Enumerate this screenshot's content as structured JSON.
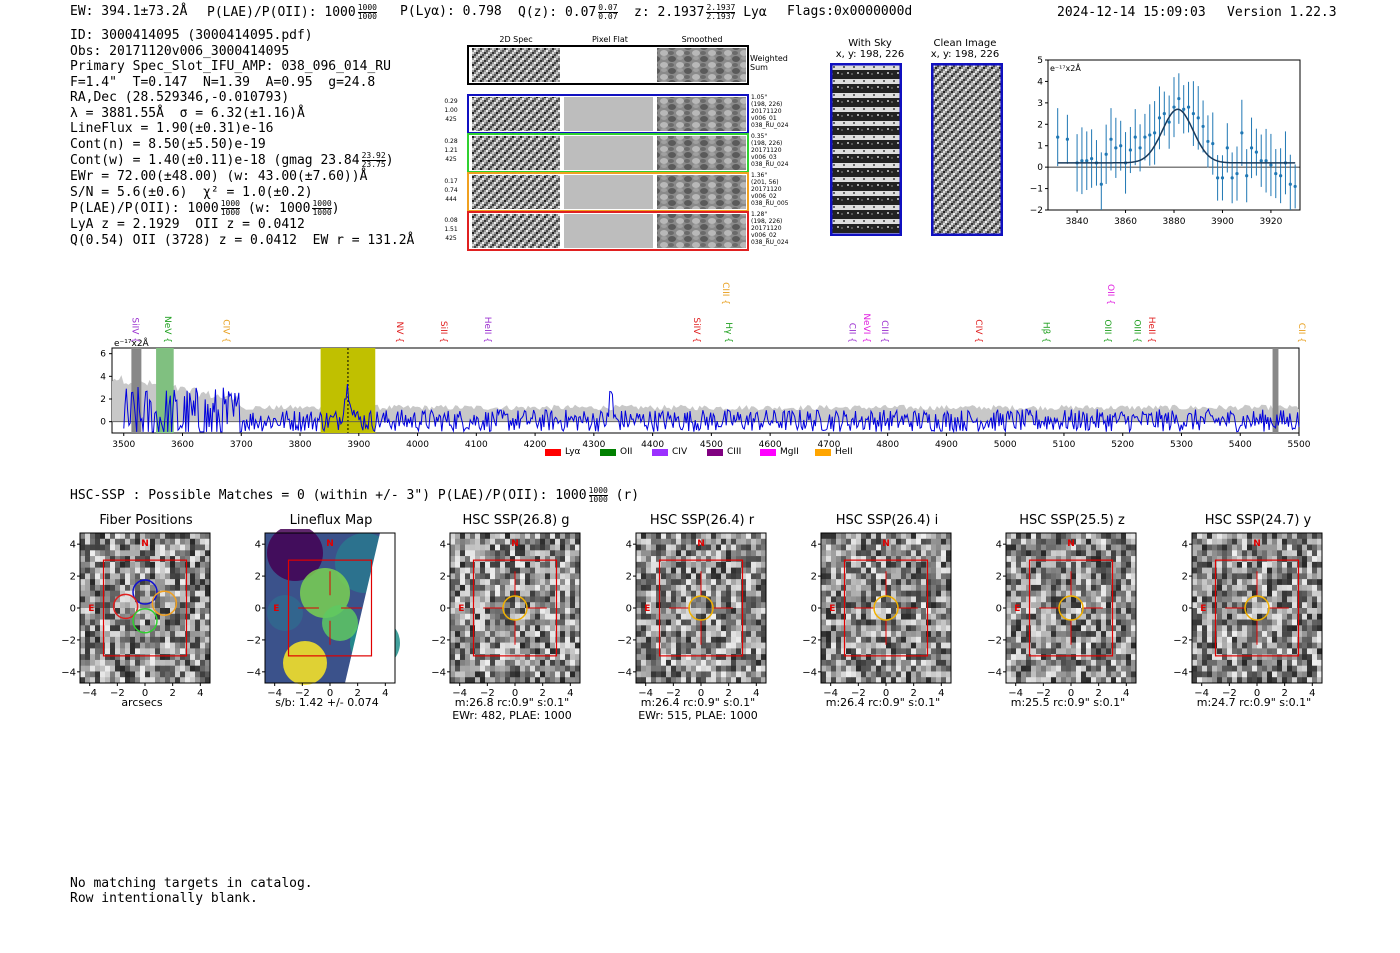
{
  "header": {
    "ew": "EW: 394.1±73.2Å",
    "plae_label": "P(LAE)/P(OII): 1000",
    "plae_hi": "1000",
    "plae_lo": "1000",
    "plya": "P(Lyα): 0.798",
    "qz_label": "Q(z): 0.07",
    "qz_hi": "0.07",
    "qz_lo": "0.07",
    "z_label": "z: 2.1937",
    "z_hi": "2.1937",
    "z_lo": "2.1937",
    "line": "Lyα",
    "flags": "Flags:0x0000000d",
    "timestamp": "2024-12-14 15:09:03",
    "version": "Version 1.22.3"
  },
  "info": {
    "l1": "ID: 3000414095 (3000414095.pdf)",
    "l2": "Obs: 20171120v006_3000414095",
    "l3": "Primary Spec_Slot_IFU_AMP: 038_096_014_RU",
    "l4": "F=1.4\"  T=0.147  N=1.39  A=0.95  g=24.8",
    "l5": "RA,Dec (28.529346,-0.010793)",
    "l6": "λ = 3881.55Å  σ = 6.32(±1.16)Å",
    "l7": "LineFlux = 1.90(±0.31)e-16",
    "l8": "Cont(n) = 8.50(±5.50)e-19",
    "l9": "Cont(w) = 1.40(±0.11)e-18 (gmag 23.84",
    "l9_hi": "23.92",
    "l9_lo": "23.75",
    "l9_end": ")",
    "l10": "EWr = 72.00(±48.00) (w: 43.00(±7.60))Å",
    "l11": "S/N = 5.6(±0.6)  χ² = 1.0(±0.2)",
    "l12": "P(LAE)/P(OII): 1000",
    "l12_hi": "1000",
    "l12_lo": "1000",
    "l12_mid": "(w: 1000",
    "l12_hi2": "1000",
    "l12_lo2": "1000",
    "l12_end": ")",
    "l13": "LyA z = 2.1929  OII z = 0.0412",
    "l14": "Q(0.54) OII (3728) z = 0.0412  EW r = 131.2Å"
  },
  "fiber_panel": {
    "col_titles": [
      "2D Spec",
      "Pixel Flat",
      "Smoothed"
    ],
    "weighted_sum": "Weighted\nSum",
    "rows": [
      {
        "left": [
          "0.29",
          "1.00",
          "425"
        ],
        "right": "1.05\"\n(198, 226)\n20171120\nv006_01\n038_RU_024",
        "color": "#1010c0"
      },
      {
        "left": [
          "0.28",
          "1.21",
          "425"
        ],
        "right": "0.35\"\n(198, 226)\n20171120\nv006_03\n038_RU_024",
        "color": "#30d030"
      },
      {
        "left": [
          "0.17",
          "0.74",
          "444"
        ],
        "right": "1.36\"\n(201, 56)\n20171120\nv006_02\n038_RU_005",
        "color": "#f0a020"
      },
      {
        "left": [
          "0.08",
          "1.51",
          "425"
        ],
        "right": "1.28\"\n(198, 226)\n20171120\nv006_02\n038_RU_024",
        "color": "#e02020"
      }
    ]
  },
  "sky_panel": {
    "title": "With Sky",
    "coords": "x, y: 198, 226"
  },
  "clean_panel": {
    "title": "Clean Image",
    "coords": "x, y: 198, 226"
  },
  "line_fit": {
    "unit_label": "e⁻¹⁷x2Å"
  },
  "spectrum": {
    "unit_label": "e⁻¹⁷x2Å",
    "lines": [
      {
        "name": "SiIV",
        "w": 3510,
        "color": "#9b30d0"
      },
      {
        "name": "NeV",
        "w": 3565,
        "color": "#20a020"
      },
      {
        "name": "CIV",
        "w": 3665,
        "color": "#e8a020"
      },
      {
        "name": "NV",
        "w": 3960,
        "color": "#e02020"
      },
      {
        "name": "SiII",
        "w": 4035,
        "color": "#e02020"
      },
      {
        "name": "HeII",
        "w": 4110,
        "color": "#9b30d0"
      },
      {
        "name": "SiIV",
        "w": 4465,
        "color": "#e02020"
      },
      {
        "name": "CIII",
        "w": 4515,
        "color": "#e8a020"
      },
      {
        "name": "Hγ",
        "w": 4520,
        "color": "#20a020"
      },
      {
        "name": "CII",
        "w": 4730,
        "color": "#9b30d0"
      },
      {
        "name": "NeVI",
        "w": 4755,
        "color": "#e020e0"
      },
      {
        "name": "CIII",
        "w": 4785,
        "color": "#9b30d0"
      },
      {
        "name": "CIV",
        "w": 4945,
        "color": "#e02020"
      },
      {
        "name": "Hβ",
        "w": 5060,
        "color": "#20a020"
      },
      {
        "name": "OII",
        "w": 5170,
        "color": "#e020e0"
      },
      {
        "name": "OIII",
        "w": 5165,
        "color": "#20a020"
      },
      {
        "name": "OIII",
        "w": 5215,
        "color": "#20a020"
      },
      {
        "name": "HeII",
        "w": 5240,
        "color": "#e02020"
      },
      {
        "name": "CII",
        "w": 5495,
        "color": "#e8a020"
      }
    ],
    "legend": [
      {
        "name": "Lyα",
        "color": "#ff0000"
      },
      {
        "name": "OII",
        "color": "#008000"
      },
      {
        "name": "CIV",
        "color": "#9b30ff"
      },
      {
        "name": "CIII",
        "color": "#800080"
      },
      {
        "name": "MgII",
        "color": "#ff00ff"
      },
      {
        "name": "HeII",
        "color": "#ffa500"
      }
    ]
  },
  "hsc": {
    "summary": "HSC-SSP : Possible Matches = 0 (within +/- 3\")  P(LAE)/P(OII): 1000",
    "summary_hi": "1000",
    "summary_lo": "1000",
    "summary_end": "(r)"
  },
  "cutouts": [
    {
      "title": "Fiber Positions",
      "cap1": "arcsecs",
      "cap2": ""
    },
    {
      "title": "Lineflux Map",
      "cap1": "s/b: 1.42 +/- 0.074",
      "cap2": ""
    },
    {
      "title": "HSC SSP(26.8) g",
      "cap1": "m:26.8 rc:0.9\"  s:0.1\"",
      "cap2": "EWr: 482, PLAE: 1000"
    },
    {
      "title": "HSC SSP(26.4) r",
      "cap1": "m:26.4 rc:0.9\"  s:0.1\"",
      "cap2": "EWr: 515, PLAE: 1000"
    },
    {
      "title": "HSC SSP(26.4) i",
      "cap1": "m:26.4 rc:0.9\"  s:0.1\"",
      "cap2": ""
    },
    {
      "title": "HSC SSP(25.5) z",
      "cap1": "m:25.5 rc:0.9\"  s:0.1\"",
      "cap2": ""
    },
    {
      "title": "HSC SSP(24.7) y",
      "cap1": "m:24.7 rc:0.9\"  s:0.1\"",
      "cap2": ""
    }
  ],
  "compass": {
    "north": "N",
    "east": "E"
  },
  "footer": {
    "l1": "No matching targets in catalog.",
    "l2": "Row intentionally blank."
  },
  "chart_data": [
    {
      "type": "scatter",
      "title": "",
      "xlabel": "",
      "ylabel": "",
      "xlim": [
        3828,
        3932
      ],
      "ylim": [
        -2,
        5
      ],
      "xticks": [
        3840,
        3860,
        3880,
        3900,
        3920
      ],
      "yticks": [
        -2,
        -1,
        0,
        1,
        2,
        3,
        4,
        5
      ],
      "x": [
        3832,
        3836,
        3840,
        3842,
        3844,
        3846,
        3848,
        3850,
        3852,
        3854,
        3856,
        3858,
        3860,
        3862,
        3864,
        3866,
        3868,
        3870,
        3872,
        3874,
        3876,
        3878,
        3880,
        3882,
        3884,
        3886,
        3888,
        3890,
        3892,
        3894,
        3896,
        3898,
        3900,
        3902,
        3904,
        3906,
        3908,
        3910,
        3912,
        3914,
        3916,
        3918,
        3920,
        3922,
        3924,
        3926,
        3928,
        3930
      ],
      "y": [
        1.4,
        1.3,
        0.2,
        0.3,
        0.3,
        0.4,
        0.2,
        -0.8,
        0.6,
        1.3,
        0.9,
        1.0,
        0.2,
        0.8,
        1.4,
        0.9,
        1.4,
        1.5,
        1.6,
        2.3,
        2.5,
        2.1,
        2.8,
        3.2,
        2.7,
        2.8,
        2.5,
        2.3,
        1.9,
        1.2,
        1.1,
        -0.5,
        -0.5,
        0.9,
        -0.5,
        -0.3,
        1.6,
        -0.4,
        0.9,
        0.7,
        0.3,
        0.3,
        0.1,
        -0.3,
        -0.4,
        0.2,
        -0.8,
        -0.9
      ],
      "yerr": 1.2,
      "fit": {
        "center": 3881.55,
        "sigma": 6.32,
        "amplitude": 2.5,
        "baseline": 0.2
      }
    },
    {
      "type": "line",
      "title": "",
      "xlabel": "",
      "ylabel": "",
      "xlim": [
        3480,
        5500
      ],
      "ylim": [
        -1,
        6.5
      ],
      "xticks": [
        3500,
        3600,
        3700,
        3800,
        3900,
        4000,
        4100,
        4200,
        4300,
        4400,
        4500,
        4600,
        4700,
        4800,
        4900,
        5000,
        5100,
        5200,
        5300,
        5400,
        5500
      ],
      "yticks": [
        0,
        2,
        4,
        6
      ],
      "highlight_range": [
        3835,
        3928
      ],
      "highlight_color": "#c0c000",
      "emission_peak": 3881.55,
      "green_band": [
        3555,
        3585
      ],
      "masked_left": [
        3513,
        3530
      ],
      "masked_right": [
        5455,
        5465
      ]
    }
  ]
}
